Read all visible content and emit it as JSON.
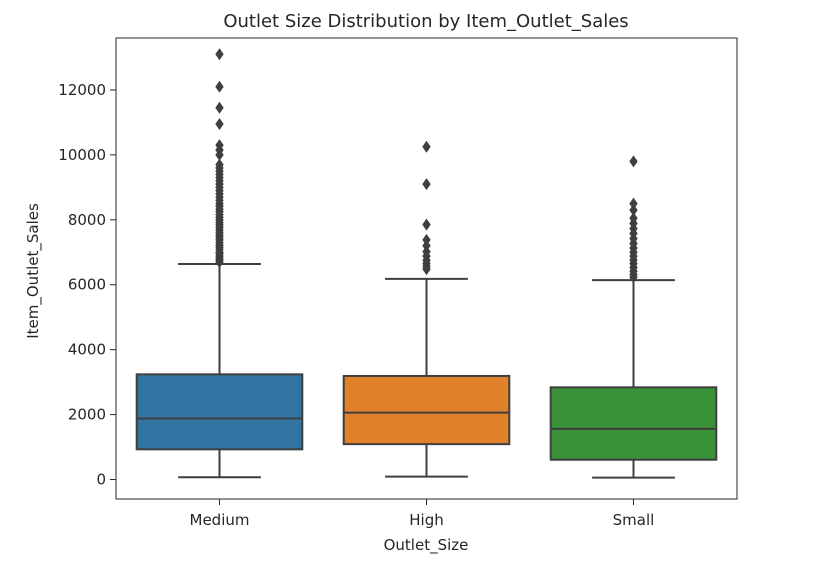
{
  "chart_data": {
    "type": "box",
    "title": "Outlet Size Distribution by Item_Outlet_Sales",
    "xlabel": "Outlet_Size",
    "ylabel": "Item_Outlet_Sales",
    "ylim": [
      -600,
      13600
    ],
    "yticks": [
      0,
      2000,
      4000,
      6000,
      8000,
      10000,
      12000
    ],
    "grid": false,
    "legend": "none",
    "categories": [
      "Medium",
      "High",
      "Small"
    ],
    "boxes": [
      {
        "category": "Medium",
        "color": "#3274a1",
        "whisker_low": 70,
        "q1": 930,
        "median": 1880,
        "q3": 3240,
        "whisker_high": 6640,
        "outliers": [
          6700,
          6760,
          6820,
          6880,
          6950,
          7000,
          7080,
          7150,
          7220,
          7300,
          7380,
          7450,
          7520,
          7600,
          7680,
          7760,
          7840,
          7920,
          8000,
          8080,
          8160,
          8250,
          8330,
          8420,
          8500,
          8600,
          8700,
          8800,
          8900,
          9000,
          9100,
          9200,
          9300,
          9400,
          9500,
          9600,
          9700,
          10000,
          10150,
          10300,
          10950,
          11450,
          12100,
          13100
        ]
      },
      {
        "category": "High",
        "color": "#e1812c",
        "whisker_low": 90,
        "q1": 1090,
        "median": 2060,
        "q3": 3190,
        "whisker_high": 6180,
        "outliers": [
          6480,
          6560,
          6650,
          6750,
          6880,
          7020,
          7200,
          7380,
          7850,
          9100,
          10250
        ]
      },
      {
        "category": "Small",
        "color": "#3a923a",
        "whisker_low": 60,
        "q1": 610,
        "median": 1560,
        "q3": 2840,
        "whisker_high": 6140,
        "outliers": [
          6230,
          6320,
          6420,
          6530,
          6650,
          6760,
          6880,
          7000,
          7130,
          7270,
          7420,
          7580,
          7730,
          7890,
          8050,
          8300,
          8500,
          9800
        ]
      }
    ]
  }
}
